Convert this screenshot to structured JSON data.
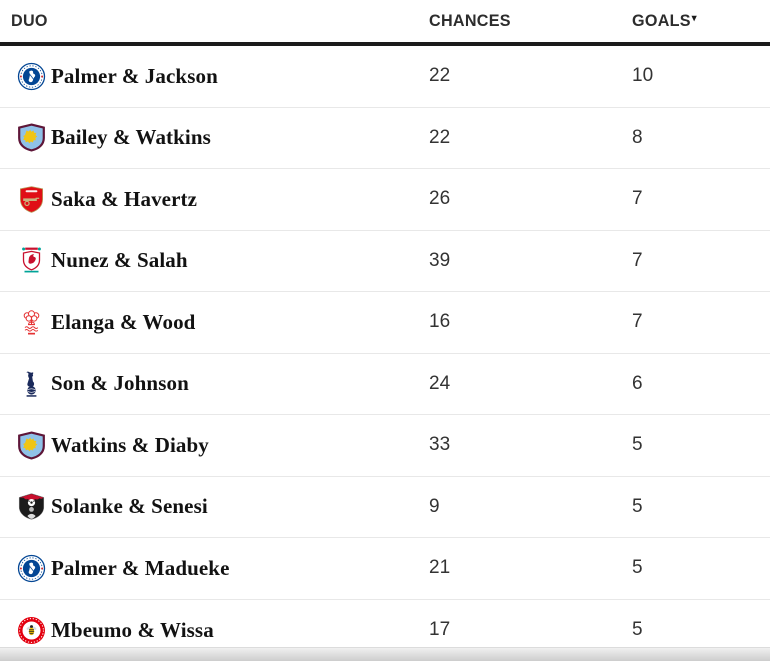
{
  "table": {
    "columns": [
      {
        "key": "duo",
        "label": "DUO"
      },
      {
        "key": "chances",
        "label": "CHANCES"
      },
      {
        "key": "goals",
        "label": "GOALS",
        "sorted": true
      }
    ],
    "sort_indicator": "▾",
    "rows": [
      {
        "icon": "chelsea-crest-icon",
        "team": "chelsea",
        "duo": "Palmer & Jackson",
        "chances": "22",
        "goals": "10"
      },
      {
        "icon": "aston-villa-crest-icon",
        "team": "aston-villa",
        "duo": "Bailey & Watkins",
        "chances": "22",
        "goals": "8"
      },
      {
        "icon": "arsenal-crest-icon",
        "team": "arsenal",
        "duo": "Saka & Havertz",
        "chances": "26",
        "goals": "7"
      },
      {
        "icon": "liverpool-crest-icon",
        "team": "liverpool",
        "duo": "Nunez & Salah",
        "chances": "39",
        "goals": "7"
      },
      {
        "icon": "nottingham-forest-crest-icon",
        "team": "nottingham-forest",
        "duo": "Elanga & Wood",
        "chances": "16",
        "goals": "7"
      },
      {
        "icon": "tottenham-crest-icon",
        "team": "tottenham",
        "duo": "Son & Johnson",
        "chances": "24",
        "goals": "6"
      },
      {
        "icon": "aston-villa-crest-icon",
        "team": "aston-villa",
        "duo": "Watkins & Diaby",
        "chances": "33",
        "goals": "5"
      },
      {
        "icon": "bournemouth-crest-icon",
        "team": "bournemouth",
        "duo": "Solanke & Senesi",
        "chances": "9",
        "goals": "5"
      },
      {
        "icon": "chelsea-crest-icon",
        "team": "chelsea",
        "duo": "Palmer & Madueke",
        "chances": "21",
        "goals": "5"
      },
      {
        "icon": "brentford-crest-icon",
        "team": "brentford",
        "duo": "Mbeumo & Wissa",
        "chances": "17",
        "goals": "5"
      }
    ]
  },
  "colors": {
    "header_text": "#2d2d2d",
    "header_rule": "#1b1b1b",
    "row_separator": "#e8e8e8",
    "name_text": "#121212",
    "number_text": "#333333",
    "chelsea_blue": "#034694",
    "villa_claret": "#5e1638",
    "villa_blue": "#8fc2e8",
    "arsenal_red": "#e00e15",
    "liverpool_red": "#c8102e",
    "liverpool_teal": "#00a398",
    "forest_red": "#e53233",
    "spurs_navy": "#1b2a5b",
    "bournemouth_red": "#c8102e",
    "brentford_red": "#e3000f"
  }
}
